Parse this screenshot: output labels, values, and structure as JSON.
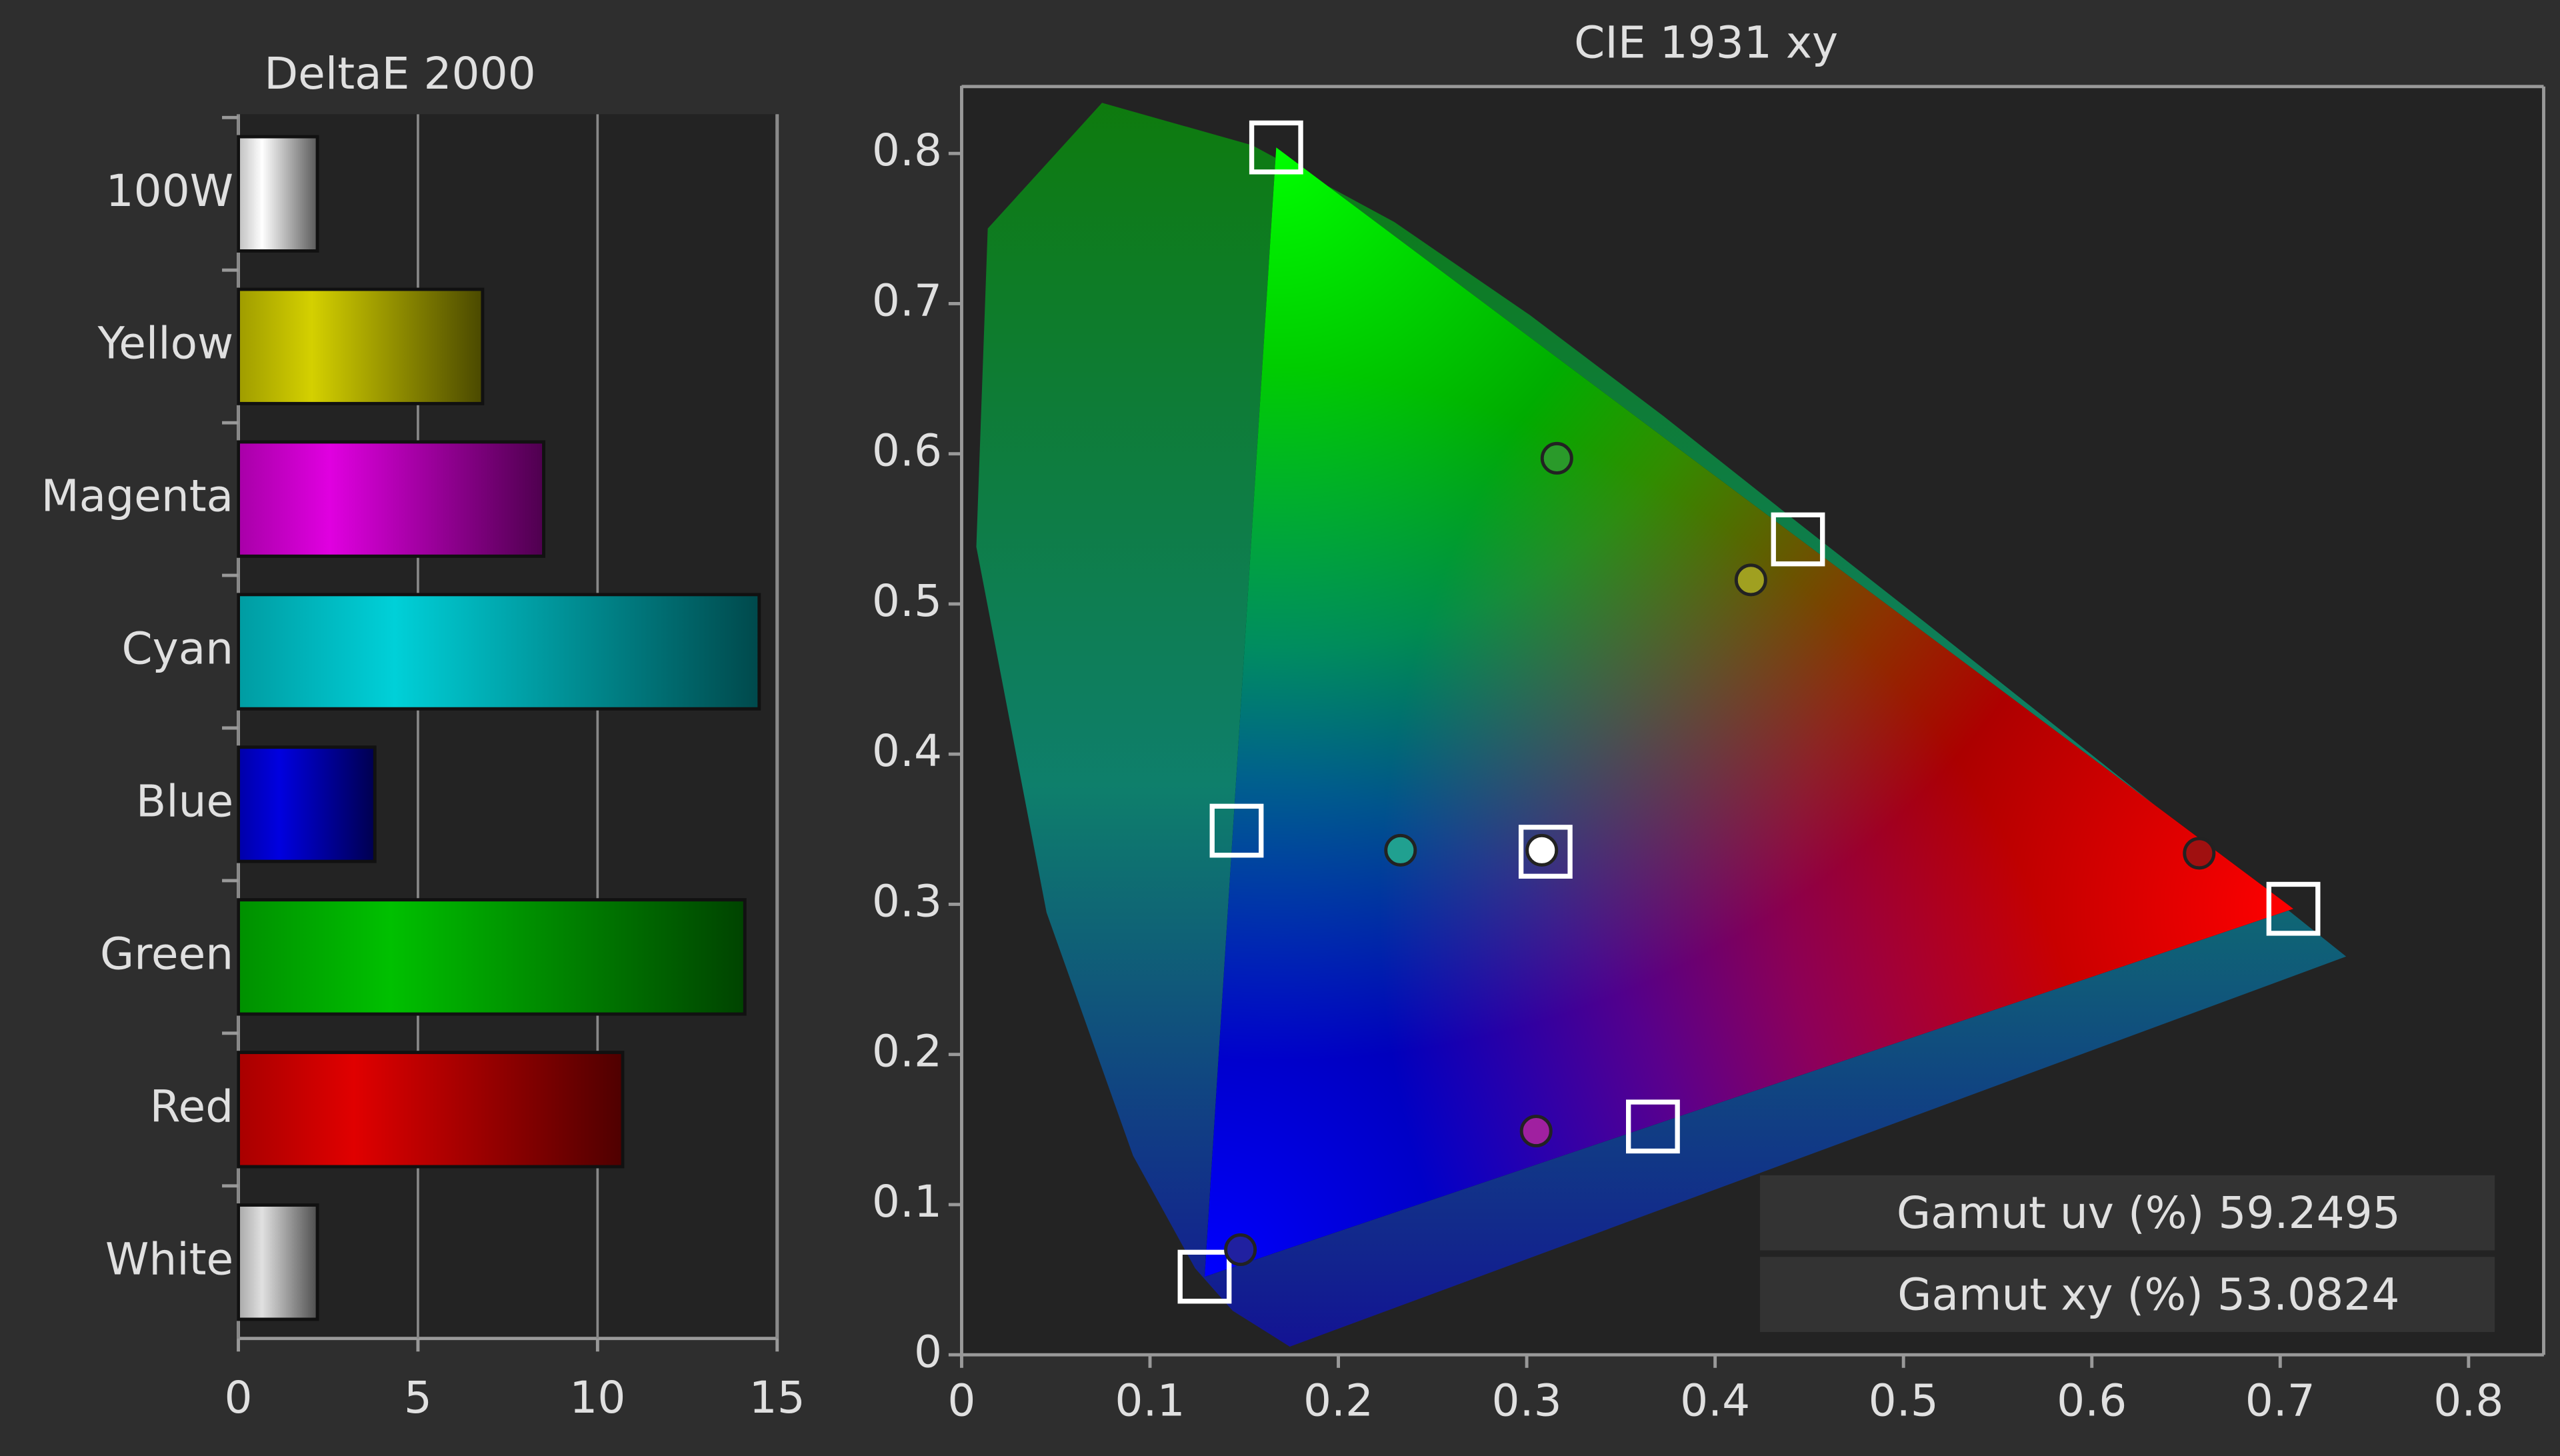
{
  "chart_data": [
    {
      "type": "bar",
      "orientation": "horizontal",
      "title": "DeltaE 2000",
      "categories": [
        "100W",
        "Yellow",
        "Magenta",
        "Cyan",
        "Blue",
        "Green",
        "Red",
        "White"
      ],
      "values": [
        2.2,
        6.8,
        8.5,
        14.5,
        3.8,
        14.1,
        10.7,
        2.2
      ],
      "colors": [
        "#ffffff",
        "#d4d000",
        "#e000e0",
        "#00d0d8",
        "#0000e0",
        "#00c000",
        "#e00000",
        "#e0e0e0"
      ],
      "xlim": [
        0,
        15
      ],
      "xticks": [
        0,
        5,
        10,
        15
      ],
      "grid": true
    },
    {
      "type": "scatter",
      "title": "CIE 1931 xy",
      "xlim": [
        0,
        0.84
      ],
      "ylim": [
        0,
        0.845
      ],
      "xticks": [
        0,
        0.1,
        0.2,
        0.3,
        0.4,
        0.5,
        0.6,
        0.7,
        0.8
      ],
      "yticks": [
        0,
        0.1,
        0.2,
        0.3,
        0.4,
        0.5,
        0.6,
        0.7,
        0.8
      ],
      "series": [
        {
          "marker": "square",
          "color": "#ffffff",
          "x": [
            0.707,
            0.167,
            0.129,
            0.146,
            0.367,
            0.444,
            0.31
          ],
          "values": [
            0.297,
            0.804,
            0.052,
            0.349,
            0.152,
            0.543,
            0.335
          ]
        },
        {
          "marker": "circle",
          "colors": [
            "#a01010",
            "#2a9a2a",
            "#2020a0",
            "#20a090",
            "#a020a0",
            "#a0a020",
            "#ffffff"
          ],
          "x": [
            0.657,
            0.316,
            0.148,
            0.233,
            0.305,
            0.419,
            0.308
          ],
          "values": [
            0.334,
            0.597,
            0.07,
            0.336,
            0.149,
            0.516,
            0.336
          ]
        }
      ],
      "annotations": [
        "Gamut uv (%) 59.2495",
        "Gamut xy (%) 53.0824"
      ]
    }
  ]
}
